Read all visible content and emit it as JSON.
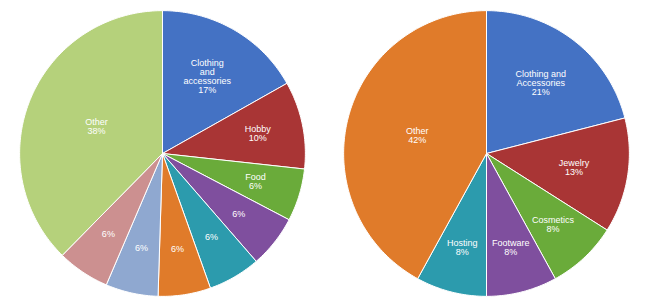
{
  "chart_data": [
    {
      "type": "pie",
      "categories": [
        "Clothing\nand\naccessories",
        "Hobby",
        "Food",
        null,
        null,
        null,
        null,
        null,
        "Other"
      ],
      "values": [
        17,
        10,
        6,
        6,
        6,
        6,
        6,
        6,
        38
      ],
      "value_labels": [
        "17%",
        "10%",
        "6%",
        "6%",
        "6%",
        "6%",
        "6%",
        "6%",
        "38%"
      ],
      "colors": [
        "#4472C4",
        "#A93535",
        "#6AAB3A",
        "#7F4F9E",
        "#2C9BAD",
        "#E07B2A",
        "#8FA8D0",
        "#CC9090",
        "#B5D17B"
      ],
      "data_labels": true
    },
    {
      "type": "pie",
      "categories": [
        "Clothing and\nAccessories",
        "Jewelry",
        "Cosmetics",
        "Footware",
        "Hosting",
        "Other"
      ],
      "values": [
        21,
        13,
        8,
        8,
        8,
        42
      ],
      "value_labels": [
        "21%",
        "13%",
        "8%",
        "8%",
        "8%",
        "42%"
      ],
      "colors": [
        "#4472C4",
        "#A93535",
        "#6AAB3A",
        "#7F4F9E",
        "#2C9BAD",
        "#E07B2A"
      ],
      "data_labels": true
    }
  ]
}
